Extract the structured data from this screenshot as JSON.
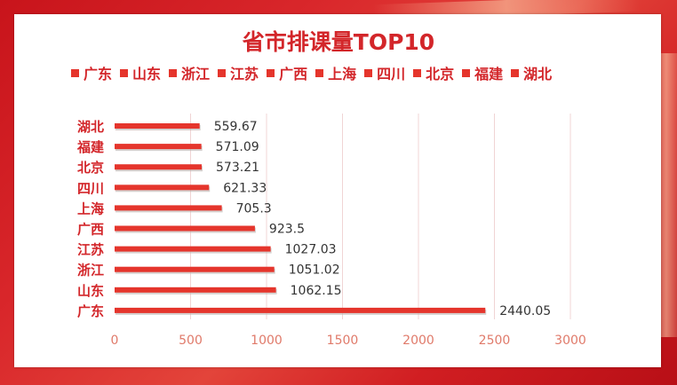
{
  "chart_data": {
    "type": "bar",
    "orientation": "horizontal",
    "title": "省市排课量TOP10",
    "categories": [
      "湖北",
      "福建",
      "北京",
      "四川",
      "上海",
      "广西",
      "江苏",
      "浙江",
      "山东",
      "广东"
    ],
    "values": [
      559.67,
      571.09,
      573.21,
      621.33,
      705.3,
      923.5,
      1027.03,
      1051.02,
      1062.15,
      2440.05
    ],
    "value_labels": [
      "559.67",
      "571.09",
      "573.21",
      "621.33",
      "705.3",
      "923.5",
      "1027.03",
      "1051.02",
      "1062.15",
      "2440.05"
    ],
    "legend": [
      "广东",
      "山东",
      "浙江",
      "江苏",
      "广西",
      "上海",
      "四川",
      "北京",
      "福建",
      "湖北"
    ],
    "legend_position": "top",
    "xlim": [
      0,
      3000
    ],
    "xticks": [
      0,
      500,
      1000,
      1500,
      2000,
      2500,
      3000
    ],
    "xlabel": "",
    "ylabel": "",
    "grid": "vertical",
    "bar_color": "#e5352c",
    "label_color": "#d3262a",
    "tick_color": "#e07a6a"
  }
}
